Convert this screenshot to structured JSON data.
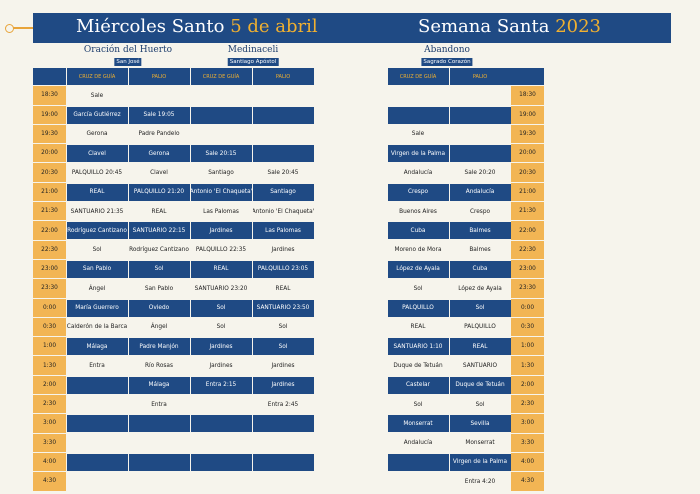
{
  "header": {
    "title_left": "Miércoles Santo",
    "date_left": "5 de abril",
    "title_right": "Semana Santa",
    "year_right": "2023"
  },
  "processions": [
    {
      "name": "Oración del Huerto",
      "church": "San José"
    },
    {
      "name": "Medinaceli",
      "church": "Santiago Apóstol"
    },
    {
      "name": "Abandono",
      "church": "Sagrado Corazón"
    }
  ],
  "columns": {
    "cruz": "CRUZ DE GUÍA",
    "palio": "PALIO"
  },
  "times": [
    "18:30",
    "19:00",
    "19:30",
    "20:00",
    "20:30",
    "21:00",
    "21:30",
    "22:00",
    "22:30",
    "23:00",
    "23:30",
    "0:00",
    "0:30",
    "1:00",
    "1:30",
    "2:00",
    "2:30",
    "3:00",
    "3:30",
    "4:00",
    "4:30"
  ],
  "left_rows": [
    [
      "Sale",
      "",
      "",
      ""
    ],
    [
      "García Gutiérrez",
      "Sale 19:05",
      "",
      ""
    ],
    [
      "Gerona",
      "Padre Pandelo",
      "",
      ""
    ],
    [
      "Clavel",
      "Gerona",
      "Sale 20:15",
      ""
    ],
    [
      "PALQUILLO 20:45",
      "Clavel",
      "Santiago",
      "Sale 20:45"
    ],
    [
      "REAL",
      "PALQUILLO 21:20",
      "Antonio 'El Chaqueta'",
      "Santiago"
    ],
    [
      "SANTUARIO 21:35",
      "REAL",
      "Las Palomas",
      "Antonio 'El Chaqueta'"
    ],
    [
      "Rodríguez Cantizano",
      "SANTUARIO 22:15",
      "Jardines",
      "Las Palomas"
    ],
    [
      "Sol",
      "Rodríguez Cantizano",
      "PALQUILLO 22:35",
      "Jardines"
    ],
    [
      "San Pablo",
      "Sol",
      "REAL",
      "PALQUILLO 23:05"
    ],
    [
      "Ángel",
      "San Pablo",
      "SANTUARIO 23:20",
      "REAL"
    ],
    [
      "María Guerrero",
      "Oviedo",
      "Sol",
      "SANTUARIO 23:50"
    ],
    [
      "Calderón de la Barca",
      "Ángel",
      "Sol",
      "Sol"
    ],
    [
      "Málaga",
      "Padre Manjón",
      "Jardines",
      "Sol"
    ],
    [
      "Entra",
      "Río Rosas",
      "Jardines",
      "Jardines"
    ],
    [
      "",
      "Málaga",
      "Entra 2:15",
      "Jardines"
    ],
    [
      "",
      "Entra",
      "",
      "Entra 2:45"
    ],
    [
      "",
      "",
      "",
      ""
    ],
    [
      "",
      "",
      "",
      ""
    ],
    [
      "",
      "",
      "",
      ""
    ],
    [
      "",
      "",
      "",
      ""
    ]
  ],
  "right_rows": [
    [
      "",
      ""
    ],
    [
      "",
      ""
    ],
    [
      "Sale",
      ""
    ],
    [
      "Virgen de la Palma",
      ""
    ],
    [
      "Andalucía",
      "Sale 20:20"
    ],
    [
      "Crespo",
      "Andalucía"
    ],
    [
      "Buenos Aires",
      "Crespo"
    ],
    [
      "Cuba",
      "Balmes"
    ],
    [
      "Moreno de Mora",
      "Balmes"
    ],
    [
      "López de Ayala",
      "Cuba"
    ],
    [
      "Sol",
      "López de Ayala"
    ],
    [
      "PALQUILLO",
      "Sol"
    ],
    [
      "REAL",
      "PALQUILLO"
    ],
    [
      "SANTUARIO 1:10",
      "REAL"
    ],
    [
      "Duque de Tetuán",
      "SANTUARIO"
    ],
    [
      "Castelar",
      "Duque de Tetuán"
    ],
    [
      "Sol",
      "Sol"
    ],
    [
      "Monserrat",
      "Sevilla"
    ],
    [
      "Andalucía",
      "Monserrat"
    ],
    [
      "",
      "Virgen de la Palma"
    ],
    [
      "",
      "Entra 4:20"
    ]
  ],
  "colors": {
    "navy": "#1f4a84",
    "gold": "#f2b554"
  }
}
